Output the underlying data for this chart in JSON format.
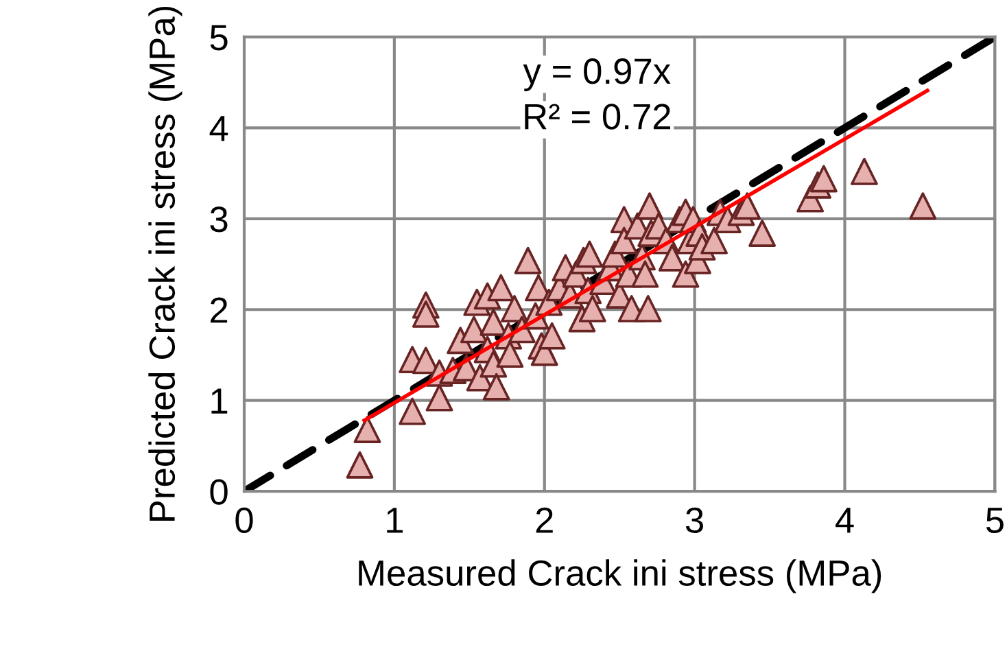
{
  "chart_data": {
    "type": "scatter",
    "xlabel": "Measured Crack ini stress (MPa)",
    "ylabel": "Predicted Crack ini stress (MPa)",
    "xlim": [
      0,
      5
    ],
    "ylim": [
      0,
      5
    ],
    "xticks": [
      0,
      1,
      2,
      3,
      4,
      5
    ],
    "yticks": [
      0,
      1,
      2,
      3,
      4,
      5
    ],
    "grid": true,
    "legend": false,
    "annotations": [
      "y = 0.97x",
      "R² = 0.72"
    ],
    "series": [
      {
        "marker": "triangle",
        "color": "#e6b0ae",
        "x": [
          0.77,
          0.82,
          1.12,
          1.12,
          1.21,
          1.21,
          1.21,
          1.3,
          1.3,
          1.39,
          1.44,
          1.48,
          1.53,
          1.55,
          1.57,
          1.62,
          1.62,
          1.66,
          1.66,
          1.68,
          1.71,
          1.76,
          1.77,
          1.8,
          1.85,
          1.89,
          1.94,
          1.96,
          1.98,
          2.0,
          2.03,
          2.05,
          2.1,
          2.14,
          2.17,
          2.21,
          2.25,
          2.26,
          2.29,
          2.3,
          2.32,
          2.39,
          2.44,
          2.47,
          2.5,
          2.53,
          2.53,
          2.56,
          2.58,
          2.62,
          2.65,
          2.67,
          2.69,
          2.7,
          2.71,
          2.76,
          2.81,
          2.85,
          2.9,
          2.94,
          2.94,
          2.97,
          2.99,
          3.02,
          3.03,
          3.05,
          3.13,
          3.17,
          3.22,
          3.31,
          3.35,
          3.45,
          3.77,
          3.82,
          3.86,
          4.13,
          4.52
        ],
        "values": [
          0.29,
          0.68,
          0.88,
          1.45,
          1.44,
          2.05,
          1.95,
          1.3,
          1.03,
          1.33,
          1.66,
          1.36,
          1.78,
          2.08,
          1.25,
          1.56,
          2.15,
          1.86,
          1.4,
          1.15,
          2.24,
          1.71,
          1.51,
          2.01,
          1.78,
          2.54,
          1.93,
          2.24,
          1.6,
          1.53,
          2.08,
          1.71,
          2.24,
          2.46,
          2.16,
          2.39,
          1.9,
          2.54,
          2.21,
          2.61,
          2.01,
          2.31,
          2.46,
          2.61,
          2.16,
          2.99,
          2.76,
          2.39,
          2.01,
          2.92,
          2.58,
          2.39,
          2.01,
          3.14,
          2.84,
          2.92,
          2.76,
          2.57,
          2.99,
          3.07,
          2.39,
          2.76,
          2.99,
          2.54,
          2.84,
          2.69,
          2.76,
          3.07,
          2.99,
          3.07,
          3.14,
          2.84,
          3.22,
          3.37,
          3.44,
          3.52,
          3.14
        ]
      },
      {
        "type": "line",
        "line_style": "dashed",
        "color": "#000000",
        "x": [
          0,
          5
        ],
        "values": [
          0,
          5
        ]
      },
      {
        "type": "line",
        "line_style": "solid",
        "color": "#ff0000",
        "x": [
          0.8,
          4.55
        ],
        "values": [
          0.78,
          4.41
        ]
      }
    ]
  }
}
